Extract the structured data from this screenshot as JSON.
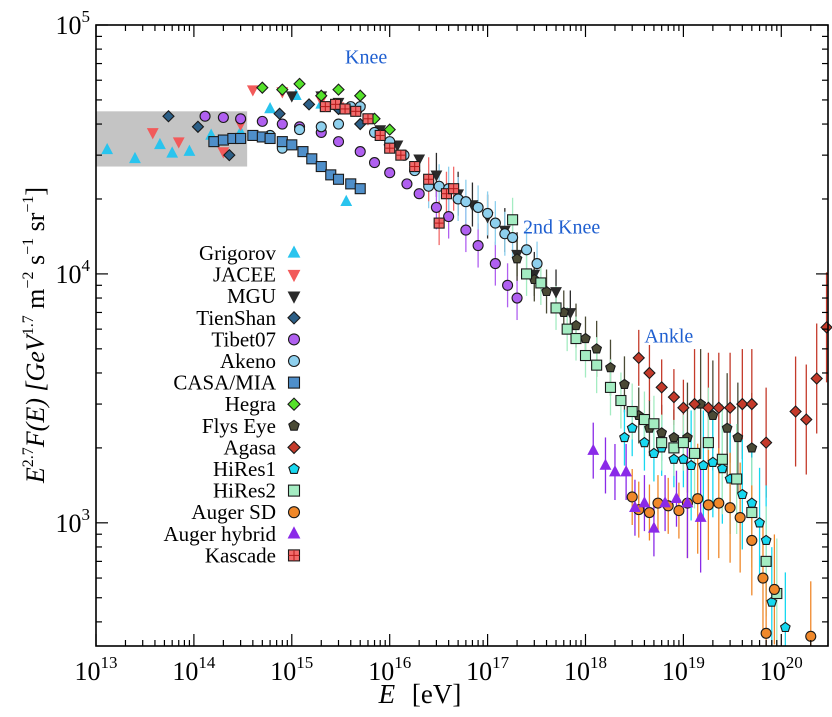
{
  "chart_data": {
    "type": "scatter",
    "title": "",
    "xlabel_main": "E",
    "xlabel_unit": "[eV]",
    "ylabel": "E^{2.7}F(E) [GeV^{1.7} m^{-2} s^{-1} sr^{-1}]",
    "ylabel_parts": {
      "lead": "E",
      "exp": "2.7",
      "func": "F(E) [GeV",
      "exp2": "1.7",
      "mid": " m",
      "exp3": "−2",
      "mid2": " s",
      "exp4": "−1",
      "mid3": " sr",
      "exp5": "−1",
      "tail": "]"
    },
    "x_scale": "log",
    "y_scale": "log",
    "xlim": [
      10000000000000.0,
      3e+20
    ],
    "ylim": [
      320,
      100000
    ],
    "x_ticks": [
      {
        "v": 10000000000000.0,
        "base": "10",
        "exp": "13"
      },
      {
        "v": 100000000000000.0,
        "base": "10",
        "exp": "14"
      },
      {
        "v": 1000000000000000.0,
        "base": "10",
        "exp": "15"
      },
      {
        "v": 1e+16,
        "base": "10",
        "exp": "16"
      },
      {
        "v": 1e+17,
        "base": "10",
        "exp": "17"
      },
      {
        "v": 1e+18,
        "base": "10",
        "exp": "18"
      },
      {
        "v": 1e+19,
        "base": "10",
        "exp": "19"
      },
      {
        "v": 1e+20,
        "base": "10",
        "exp": "20"
      }
    ],
    "y_ticks": [
      {
        "v": 1000,
        "base": "10",
        "exp": "3"
      },
      {
        "v": 10000,
        "base": "10",
        "exp": "4"
      },
      {
        "v": 100000,
        "base": "10",
        "exp": "5"
      }
    ],
    "direct_band": {
      "x": [
        10000000000000.0,
        350000000000000.0
      ],
      "y": [
        27000,
        45000
      ],
      "color": "#c4c4c4"
    },
    "annotations": [
      {
        "text": "Knee",
        "x": 3500000000000000.0,
        "y": 70000
      },
      {
        "text": "2nd Knee",
        "x": 2.3e+17,
        "y": 14500
      },
      {
        "text": "Ankle",
        "x": 4e+18,
        "y": 5300
      }
    ],
    "legend_position": "left",
    "series": [
      {
        "name": "Grigorov",
        "marker": "triangle-up",
        "color": "#29c4ee",
        "points": [
          [
            13000000000000.0,
            31500
          ],
          [
            25000000000000.0,
            29000
          ],
          [
            45000000000000.0,
            33000
          ],
          [
            60000000000000.0,
            30500
          ],
          [
            90000000000000.0,
            31000
          ],
          [
            150000000000000.0,
            36000
          ],
          [
            300000000000000.0,
            37000
          ],
          [
            600000000000000.0,
            46000
          ],
          [
            1100000000000000.0,
            52000
          ],
          [
            2000000000000000.0,
            48000
          ],
          [
            3600000000000000.0,
            19500
          ]
        ]
      },
      {
        "name": "JACEE",
        "marker": "triangle-down",
        "color": "#f25a5a",
        "points": [
          [
            38000000000000.0,
            37000
          ],
          [
            70000000000000.0,
            34000
          ],
          [
            200000000000000.0,
            31000
          ],
          [
            300000000000000.0,
            40000
          ],
          [
            400000000000000.0,
            55000
          ],
          [
            800000000000000.0,
            54000
          ],
          [
            2000000000000000.0,
            50000
          ],
          [
            3000000000000000.0,
            47000
          ],
          [
            6000000000000000.0,
            42000
          ]
        ]
      },
      {
        "name": "MGU",
        "marker": "triangle-down",
        "color": "#2a2a2a",
        "points": [
          [
            1000000000000000.0,
            52000
          ],
          [
            2000000000000000.0,
            52000
          ],
          [
            3000000000000000.0,
            49000
          ],
          [
            5000000000000000.0,
            46000
          ],
          [
            8000000000000000.0,
            38000
          ],
          [
            1.2e+16,
            33000
          ],
          [
            2e+16,
            29000
          ],
          [
            3e+16,
            25000
          ],
          [
            5e+16,
            21000
          ],
          [
            7e+16,
            19000
          ],
          [
            1e+17,
            17000
          ],
          [
            1.5e+17,
            15000
          ],
          [
            2e+17,
            12000
          ],
          [
            3e+17,
            10000
          ],
          [
            5e+17,
            8500
          ],
          [
            7e+17,
            7000
          ]
        ]
      },
      {
        "name": "TienShan",
        "marker": "diamond",
        "color": "#2c5f87",
        "points": [
          [
            55000000000000.0,
            43000
          ],
          [
            110000000000000.0,
            39000
          ],
          [
            230000000000000.0,
            30000
          ],
          [
            750000000000000.0,
            44000
          ],
          [
            1500000000000000.0,
            48000
          ],
          [
            3000000000000000.0,
            46000
          ],
          [
            5000000000000000.0,
            40000
          ],
          [
            1e+16,
            33000
          ]
        ]
      },
      {
        "name": "Tibet07",
        "marker": "circle",
        "color": "#b060f0",
        "points": [
          [
            130000000000000.0,
            43000
          ],
          [
            200000000000000.0,
            42500
          ],
          [
            300000000000000.0,
            42000
          ],
          [
            500000000000000.0,
            41000
          ],
          [
            800000000000000.0,
            40000
          ],
          [
            1200000000000000.0,
            39000
          ],
          [
            2000000000000000.0,
            37000
          ],
          [
            3000000000000000.0,
            34000
          ],
          [
            5000000000000000.0,
            31000
          ],
          [
            7000000000000000.0,
            28000
          ],
          [
            1e+16,
            25500
          ],
          [
            1.5e+16,
            23000
          ],
          [
            2e+16,
            21000
          ],
          [
            3e+16,
            18500
          ],
          [
            4e+16,
            17000
          ],
          [
            6e+16,
            15000
          ],
          [
            8e+16,
            13000
          ],
          [
            1.2e+17,
            11000
          ],
          [
            1.6e+17,
            9000
          ],
          [
            2e+17,
            8000
          ]
        ]
      },
      {
        "name": "Akeno",
        "marker": "circle",
        "color": "#8ed0ee",
        "points": [
          [
            600000000000000.0,
            36000
          ],
          [
            800000000000000.0,
            32000
          ],
          [
            1200000000000000.0,
            38000
          ],
          [
            2000000000000000.0,
            39000
          ],
          [
            3000000000000000.0,
            40000
          ],
          [
            4000000000000000.0,
            47000
          ],
          [
            5000000000000000.0,
            47000
          ],
          [
            7000000000000000.0,
            37000
          ],
          [
            1e+16,
            34000
          ],
          [
            1.4e+16,
            30000
          ],
          [
            1.8e+16,
            26000
          ],
          [
            2.5e+16,
            22500
          ],
          [
            3.2e+16,
            22500
          ],
          [
            4e+16,
            22000
          ],
          [
            5e+16,
            20000
          ],
          [
            6e+16,
            19500
          ],
          [
            8e+16,
            18500
          ],
          [
            1e+17,
            17500
          ],
          [
            1.2e+17,
            16000
          ],
          [
            1.5e+17,
            14500
          ],
          [
            1.8e+17,
            14000
          ],
          [
            2.5e+17,
            12500
          ],
          [
            3.2e+17,
            11000
          ]
        ]
      },
      {
        "name": "CASA/MIA",
        "marker": "square",
        "color": "#4f8fca",
        "points": [
          [
            160000000000000.0,
            34000
          ],
          [
            200000000000000.0,
            34500
          ],
          [
            250000000000000.0,
            35000
          ],
          [
            300000000000000.0,
            35000
          ],
          [
            400000000000000.0,
            36000
          ],
          [
            500000000000000.0,
            35500
          ],
          [
            600000000000000.0,
            35000
          ],
          [
            800000000000000.0,
            34000
          ],
          [
            1000000000000000.0,
            33000
          ],
          [
            1300000000000000.0,
            31000
          ],
          [
            1600000000000000.0,
            29000
          ],
          [
            2000000000000000.0,
            27000
          ],
          [
            2500000000000000.0,
            25000
          ],
          [
            3000000000000000.0,
            24000
          ],
          [
            4000000000000000.0,
            23000
          ],
          [
            5000000000000000.0,
            22000
          ]
        ]
      },
      {
        "name": "Hegra",
        "marker": "diamond",
        "color": "#55e22a",
        "points": [
          [
            500000000000000.0,
            56000
          ],
          [
            800000000000000.0,
            55000
          ],
          [
            1200000000000000.0,
            58000
          ],
          [
            2000000000000000.0,
            52000
          ],
          [
            3000000000000000.0,
            55000
          ],
          [
            5000000000000000.0,
            52000
          ],
          [
            7000000000000000.0,
            42000
          ],
          [
            1e+16,
            38000
          ]
        ]
      },
      {
        "name": "Flys Eye",
        "marker": "pentagon",
        "color": "#4a4a35",
        "points": [
          [
            2e+17,
            11500
          ],
          [
            3e+17,
            9500
          ],
          [
            4e+17,
            8500
          ],
          [
            6e+17,
            7000
          ],
          [
            8e+17,
            6200
          ],
          [
            1e+18,
            5500
          ],
          [
            1.3e+18,
            5000
          ],
          [
            1.8e+18,
            4200
          ],
          [
            2.5e+18,
            3600
          ],
          [
            3.5e+18,
            2700
          ],
          [
            4.5e+18,
            2400
          ],
          [
            6e+18,
            2300
          ],
          [
            8e+18,
            2200
          ],
          [
            1.1e+19,
            2200
          ],
          [
            1.5e+19,
            3000
          ],
          [
            2e+19,
            2700
          ],
          [
            2.8e+19,
            2400
          ],
          [
            3.6e+19,
            2200
          ],
          [
            5e+19,
            2000
          ]
        ]
      },
      {
        "name": "Agasa",
        "marker": "diamond",
        "color": "#c43a2a",
        "points": [
          [
            3.5e+18,
            4600
          ],
          [
            4.5e+18,
            4000
          ],
          [
            6e+18,
            3500
          ],
          [
            8e+18,
            3200
          ],
          [
            1e+19,
            2900
          ],
          [
            1.3e+19,
            3000
          ],
          [
            1.8e+19,
            2900
          ],
          [
            2.3e+19,
            2900
          ],
          [
            3e+19,
            2900
          ],
          [
            4e+19,
            3000
          ],
          [
            5e+19,
            3000
          ],
          [
            7e+19,
            2100
          ],
          [
            1.4e+20,
            2800
          ],
          [
            1.8e+20,
            2600
          ],
          [
            2.3e+20,
            3800
          ],
          [
            2.9e+20,
            6100
          ]
        ]
      },
      {
        "name": "HiRes1",
        "marker": "pentagon",
        "color": "#17d8f0",
        "points": [
          [
            2.5e+18,
            2200
          ],
          [
            3e+18,
            2400
          ],
          [
            4e+18,
            2100
          ],
          [
            5e+18,
            1900
          ],
          [
            6e+18,
            2000
          ],
          [
            8e+18,
            1800
          ],
          [
            1e+19,
            1800
          ],
          [
            1.2e+19,
            1700
          ],
          [
            1.6e+19,
            1700
          ],
          [
            2e+19,
            1750
          ],
          [
            2.5e+19,
            1650
          ],
          [
            3e+19,
            1500
          ],
          [
            4e+19,
            1300
          ],
          [
            5e+19,
            1200
          ],
          [
            6e+19,
            1000
          ],
          [
            7e+19,
            850
          ],
          [
            8e+19,
            480
          ],
          [
            1.1e+20,
            380
          ]
        ]
      },
      {
        "name": "HiRes2",
        "marker": "square",
        "color": "#a4ecc2",
        "points": [
          [
            1.8e+17,
            16500
          ],
          [
            2.5e+17,
            10000
          ],
          [
            3.5e+17,
            9200
          ],
          [
            5e+17,
            7300
          ],
          [
            6.5e+17,
            6000
          ],
          [
            8e+17,
            5500
          ],
          [
            1e+18,
            4700
          ],
          [
            1.3e+18,
            4300
          ],
          [
            1.8e+18,
            3500
          ],
          [
            2.3e+18,
            3100
          ],
          [
            3e+18,
            2800
          ],
          [
            4e+18,
            2600
          ],
          [
            5e+18,
            2500
          ],
          [
            6e+18,
            2100
          ],
          [
            8e+18,
            2000
          ],
          [
            1e+19,
            2100
          ],
          [
            1.3e+19,
            1900
          ],
          [
            1.8e+19,
            2100
          ],
          [
            2.5e+19,
            1800
          ],
          [
            3.5e+19,
            1500
          ],
          [
            5e+19,
            1100
          ],
          [
            7e+19,
            700
          ],
          [
            9e+19,
            520
          ]
        ]
      },
      {
        "name": "Auger SD",
        "marker": "circle",
        "color": "#f0882a",
        "points": [
          [
            3e+18,
            1270
          ],
          [
            3.5e+18,
            1130
          ],
          [
            4.5e+18,
            1100
          ],
          [
            5.5e+18,
            1200
          ],
          [
            7e+18,
            1170
          ],
          [
            9e+18,
            1120
          ],
          [
            1.1e+19,
            1200
          ],
          [
            1.4e+19,
            1250
          ],
          [
            1.8e+19,
            1180
          ],
          [
            2.3e+19,
            1200
          ],
          [
            3e+19,
            1150
          ],
          [
            3.8e+19,
            1050
          ],
          [
            5e+19,
            850
          ],
          [
            6.5e+19,
            600
          ],
          [
            8.5e+19,
            540
          ],
          [
            7e+19,
            360
          ],
          [
            2e+20,
            350
          ]
        ]
      },
      {
        "name": "Auger hybrid",
        "marker": "triangle-up",
        "color": "#8a2ae8",
        "points": [
          [
            1.2e+18,
            1950
          ],
          [
            1.6e+18,
            1700
          ],
          [
            2e+18,
            1600
          ],
          [
            2.6e+18,
            1600
          ],
          [
            3.2e+18,
            1150
          ],
          [
            4e+18,
            1200
          ],
          [
            5e+18,
            950
          ],
          [
            6.5e+18,
            1200
          ],
          [
            8.5e+18,
            1250
          ],
          [
            1.1e+19,
            1200
          ],
          [
            1.5e+19,
            1050
          ]
        ]
      },
      {
        "name": "Kascade",
        "marker": "square-cross",
        "color": "#f26a6a",
        "points": [
          [
            2200000000000000.0,
            47000
          ],
          [
            2800000000000000.0,
            48000
          ],
          [
            3500000000000000.0,
            46000
          ],
          [
            4500000000000000.0,
            45000
          ],
          [
            6000000000000000.0,
            42000
          ],
          [
            8000000000000000.0,
            36000
          ],
          [
            1e+16,
            32000
          ],
          [
            1.3e+16,
            30000
          ],
          [
            1.8e+16,
            27000
          ],
          [
            2.5e+16,
            24000
          ],
          [
            3.2e+16,
            16000
          ],
          [
            3.8e+16,
            21000
          ],
          [
            4.5e+16,
            22000
          ]
        ]
      }
    ]
  }
}
